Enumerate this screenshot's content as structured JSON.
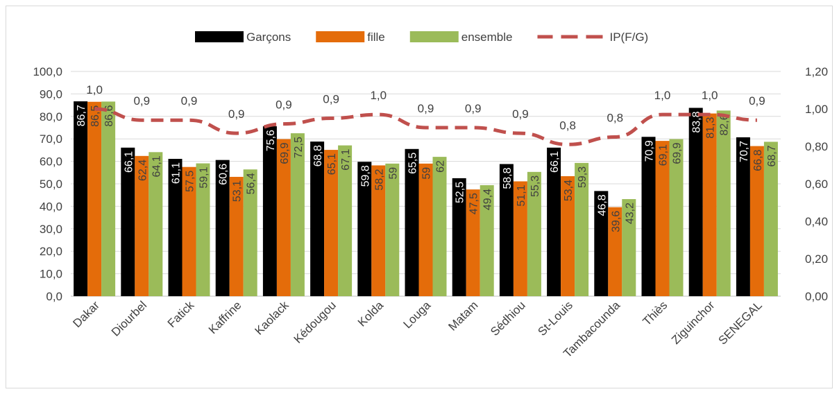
{
  "chart_data": {
    "type": "bar",
    "categories": [
      "Dakar",
      "Diourbel",
      "Fatick",
      "Kaffrine",
      "Kaolack",
      "Kédougou",
      "Kolda",
      "Louga",
      "Matam",
      "Sédhiou",
      "St-Louis",
      "Tambacounda",
      "Thiès",
      "Ziguinchor",
      "SENEGAL"
    ],
    "series": [
      {
        "name": "Garçons",
        "values": [
          86.7,
          66.1,
          61.1,
          60.6,
          75.6,
          68.8,
          59.8,
          65.5,
          52.5,
          58.8,
          66.1,
          46.8,
          70.9,
          83.8,
          70.7
        ],
        "labels": [
          "86,7",
          "66,1",
          "61,1",
          "60,6",
          "75,6",
          "68,8",
          "59,8",
          "65,5",
          "52,5",
          "58,8",
          "66,1",
          "46,8",
          "70,9",
          "83,8",
          "70,7"
        ],
        "color": "#000000",
        "label_color": "#ffffff"
      },
      {
        "name": "fille",
        "values": [
          86.5,
          62.4,
          57.5,
          53.1,
          69.9,
          65.1,
          58.2,
          59,
          47.5,
          51.1,
          53.4,
          39.6,
          69.1,
          81.3,
          66.8
        ],
        "labels": [
          "86,5",
          "62,4",
          "57,5",
          "53,1",
          "69,9",
          "65,1",
          "58,2",
          "59",
          "47,5",
          "51,1",
          "53,4",
          "39,6",
          "69,1",
          "81,3",
          "66,8"
        ],
        "color": "#e46c0a",
        "label_color": "#404040"
      },
      {
        "name": "ensemble",
        "values": [
          86.6,
          64.1,
          59.1,
          56.4,
          72.5,
          67.1,
          59,
          62,
          49.4,
          55.3,
          59.3,
          43.2,
          69.9,
          82.6,
          68.7
        ],
        "labels": [
          "86,6",
          "64,1",
          "59,1",
          "56,4",
          "72,5",
          "67,1",
          "59",
          "62",
          "49,4",
          "55,3",
          "59,3",
          "43,2",
          "69,9",
          "82,6",
          "68,7"
        ],
        "color": "#9bbb59",
        "label_color": "#404040"
      }
    ],
    "line_series": {
      "name": "IP(F/G)",
      "values": [
        1.0,
        0.94,
        0.94,
        0.87,
        0.92,
        0.95,
        0.97,
        0.9,
        0.9,
        0.87,
        0.81,
        0.85,
        0.97,
        0.97,
        0.94
      ],
      "labels": [
        "1,0",
        "0,9",
        "0,9",
        "0,9",
        "0,9",
        "0,9",
        "1,0",
        "0,9",
        "0,9",
        "0,9",
        "0,8",
        "0,8",
        "1,0",
        "1,0",
        "0,9"
      ],
      "color": "#c0504d",
      "style": "dashed",
      "axis": "right"
    },
    "ylim": [
      0,
      100
    ],
    "yticks": [
      "0,0",
      "10,0",
      "20,0",
      "30,0",
      "40,0",
      "50,0",
      "60,0",
      "70,0",
      "80,0",
      "90,0",
      "100,0"
    ],
    "y2lim": [
      0,
      1.2
    ],
    "y2ticks": [
      "0,00",
      "0,20",
      "0,40",
      "0,60",
      "0,80",
      "1,00",
      "1,20"
    ],
    "title": "",
    "xlabel": "",
    "ylabel": "",
    "grid": true,
    "legend_position": "top"
  }
}
